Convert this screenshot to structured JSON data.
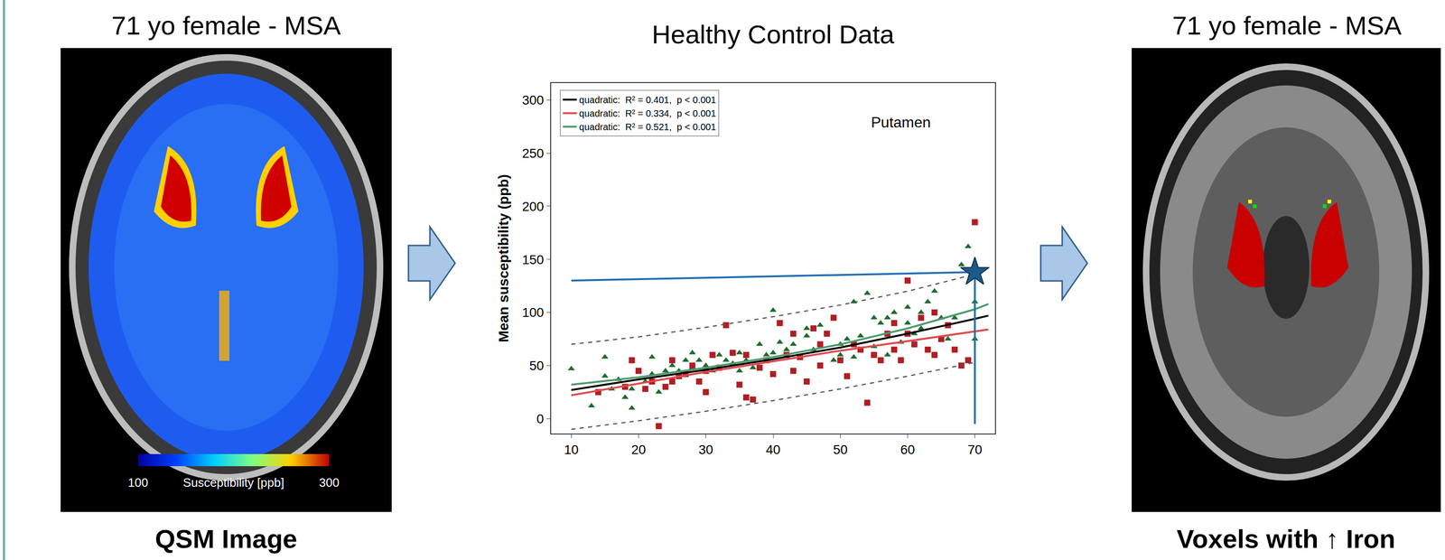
{
  "left_panel": {
    "title": "71 yo female - MSA",
    "caption": "QSM Image",
    "colorbar": {
      "min": 100,
      "max": 300,
      "label": "Susceptibility [ppb]"
    }
  },
  "chart_data": {
    "type": "scatter",
    "title": "Healthy Control Data",
    "y_label": "Mean susceptibility (ppb)",
    "annotations": [
      {
        "text": "Putamen",
        "x": 59,
        "y": 279
      }
    ],
    "xlim": [
      7,
      73
    ],
    "xticks": [
      10,
      20,
      30,
      40,
      50,
      60,
      70
    ],
    "ylim": [
      -14,
      316
    ],
    "yticks": [
      0,
      50,
      100,
      150,
      200,
      250,
      300
    ],
    "grid": false,
    "legend": "upper left",
    "series": [
      {
        "type": "scatter",
        "marker": "triangle",
        "color": "#1e6b2e",
        "x": [
          10,
          13,
          15,
          16,
          17,
          18,
          19,
          19,
          20,
          21,
          22,
          23,
          24,
          25,
          26,
          27,
          28,
          29,
          30,
          31,
          32,
          33,
          34,
          35,
          36,
          37,
          38,
          39,
          40,
          40,
          41,
          42,
          43,
          44,
          45,
          46,
          47,
          48,
          49,
          50,
          50,
          51,
          52,
          52,
          53,
          54,
          55,
          56,
          57,
          57,
          58,
          59,
          60,
          60,
          61,
          62,
          63,
          64,
          65,
          66,
          67,
          68,
          69,
          70,
          70,
          15,
          22,
          28,
          35,
          45,
          55,
          62
        ],
        "values": [
          47,
          12,
          58,
          28,
          37,
          20,
          10,
          28,
          45,
          35,
          42,
          25,
          45,
          50,
          45,
          55,
          48,
          55,
          50,
          45,
          60,
          55,
          52,
          62,
          55,
          48,
          70,
          60,
          62,
          102,
          72,
          65,
          70,
          58,
          78,
          65,
          88,
          80,
          55,
          70,
          60,
          75,
          110,
          58,
          78,
          118,
          68,
          90,
          95,
          60,
          100,
          72,
          105,
          90,
          80,
          85,
          110,
          120,
          95,
          75,
          95,
          145,
          162,
          110,
          75,
          40,
          58,
          62,
          45,
          85,
          95,
          100
        ]
      },
      {
        "type": "scatter",
        "marker": "square",
        "color": "#b01e23",
        "x": [
          14,
          18,
          19,
          20,
          21,
          22,
          23,
          24,
          25,
          26,
          27,
          28,
          29,
          30,
          31,
          32,
          33,
          34,
          35,
          36,
          37,
          38,
          39,
          40,
          41,
          42,
          43,
          44,
          45,
          46,
          47,
          48,
          49,
          50,
          51,
          52,
          53,
          54,
          55,
          56,
          57,
          58,
          59,
          60,
          60,
          61,
          62,
          63,
          64,
          65,
          66,
          67,
          68,
          69,
          70,
          64,
          58,
          47,
          43,
          36,
          30,
          25
        ],
        "values": [
          25,
          30,
          55,
          45,
          28,
          35,
          -7,
          30,
          55,
          40,
          42,
          50,
          35,
          45,
          60,
          48,
          88,
          62,
          32,
          20,
          18,
          48,
          55,
          42,
          90,
          60,
          45,
          58,
          35,
          85,
          50,
          80,
          95,
          55,
          40,
          70,
          65,
          15,
          60,
          55,
          80,
          90,
          55,
          80,
          130,
          70,
          95,
          65,
          60,
          75,
          88,
          65,
          50,
          55,
          185,
          100,
          65,
          70,
          80,
          60,
          25,
          35
        ]
      },
      {
        "type": "line",
        "line_style": "dashed",
        "color": "#555555",
        "x": [
          10,
          20,
          30,
          40,
          50,
          60,
          70
        ],
        "values": [
          70,
          77,
          86,
          96,
          107,
          120,
          136
        ]
      },
      {
        "type": "line",
        "line_style": "dashed",
        "color": "#555555",
        "x": [
          10,
          20,
          30,
          40,
          50,
          60,
          70
        ],
        "values": [
          -10,
          -2,
          7,
          17,
          28,
          40,
          53
        ]
      },
      {
        "name": "quadratic:  R² = 0.401,  p < 0.001",
        "type": "line",
        "line_style": "solid",
        "color": "#000000",
        "x": [
          10,
          20,
          30,
          40,
          50,
          60,
          70,
          72
        ],
        "values": [
          27,
          37,
          46,
          56,
          67,
          80,
          94,
          97
        ]
      },
      {
        "name": "quadratic:  R² = 0.334,  p < 0.001",
        "type": "line",
        "line_style": "solid",
        "color": "#e0484b",
        "x": [
          10,
          20,
          30,
          40,
          50,
          60,
          70,
          72
        ],
        "values": [
          22,
          33,
          44,
          54,
          64,
          73,
          82,
          84
        ]
      },
      {
        "name": "quadratic:  R² = 0.521,  p < 0.001",
        "type": "line",
        "line_style": "solid",
        "color": "#4a9a6a",
        "x": [
          10,
          20,
          30,
          40,
          50,
          60,
          70,
          72
        ],
        "values": [
          32,
          39,
          48,
          58,
          70,
          85,
          103,
          108
        ]
      },
      {
        "type": "line",
        "line_style": "solid",
        "color": "#1f6fb4",
        "x": [
          10,
          70
        ],
        "values": [
          130,
          138
        ]
      },
      {
        "type": "line",
        "line_style": "solid",
        "color": "#1f6fb4",
        "x": [
          70,
          70
        ],
        "values": [
          -5,
          138
        ]
      },
      {
        "type": "scatter",
        "marker": "star",
        "color": "#1b5a86",
        "x": [
          70
        ],
        "values": [
          138
        ]
      }
    ]
  },
  "right_panel": {
    "title": "71 yo female - MSA",
    "caption": "Voxels with ↑ Iron"
  }
}
